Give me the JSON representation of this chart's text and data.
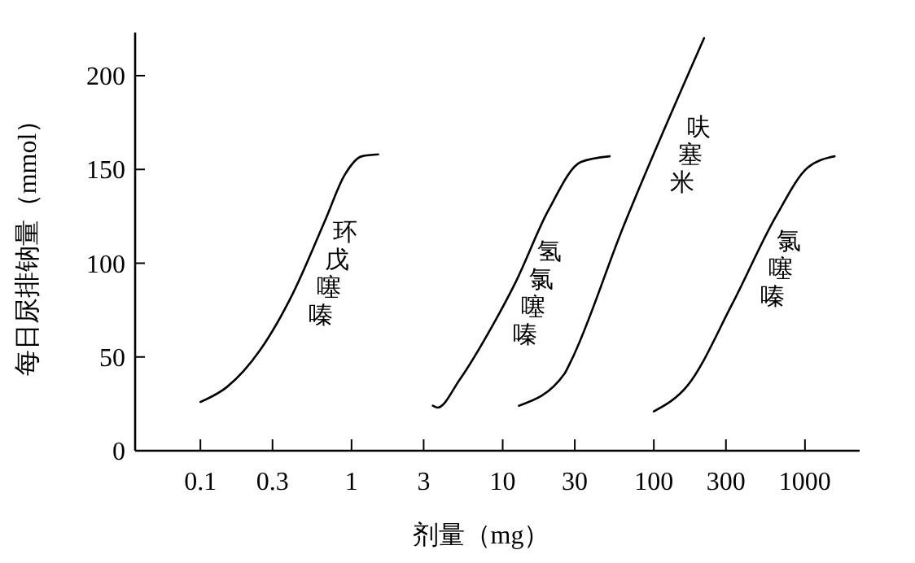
{
  "chart_data": {
    "type": "line",
    "xlabel": "剂量（mg）",
    "ylabel": "每日尿排钠量（mmol）",
    "log": "x",
    "xlim": [
      0.037,
      2300
    ],
    "xticks": [
      0.1,
      0.3,
      1,
      3,
      10,
      30,
      100,
      300,
      1000
    ],
    "ylim": [
      0,
      223
    ],
    "yticks": [
      0,
      50,
      100,
      150,
      200
    ],
    "grid": false,
    "marker": "none",
    "line_style": "solid",
    "series": [
      {
        "name": "环戊噻嗪",
        "color": "#000000",
        "x": [
          0.1,
          0.15,
          0.25,
          0.41,
          0.67,
          0.9,
          1.17,
          1.5
        ],
        "values": [
          26,
          34,
          54,
          84,
          123,
          147,
          157,
          158
        ]
      },
      {
        "name": "氢氯噻嗪",
        "color": "#000000",
        "x": [
          3.45,
          3.7,
          5.2,
          8.6,
          12.2,
          20,
          33,
          51
        ],
        "values": [
          24,
          23,
          38,
          67,
          90,
          128,
          154,
          157
        ]
      },
      {
        "name": "呋塞米",
        "color": "#000000",
        "x": [
          12.8,
          25.6,
          28,
          62.5,
          215
        ],
        "values": [
          24,
          41,
          47,
          119,
          220
        ]
      },
      {
        "name": "氯噻嗪",
        "color": "#000000",
        "x": [
          100,
          168,
          329,
          643,
          1043,
          1570
        ],
        "values": [
          21,
          35,
          78,
          125,
          151,
          157
        ]
      }
    ]
  }
}
